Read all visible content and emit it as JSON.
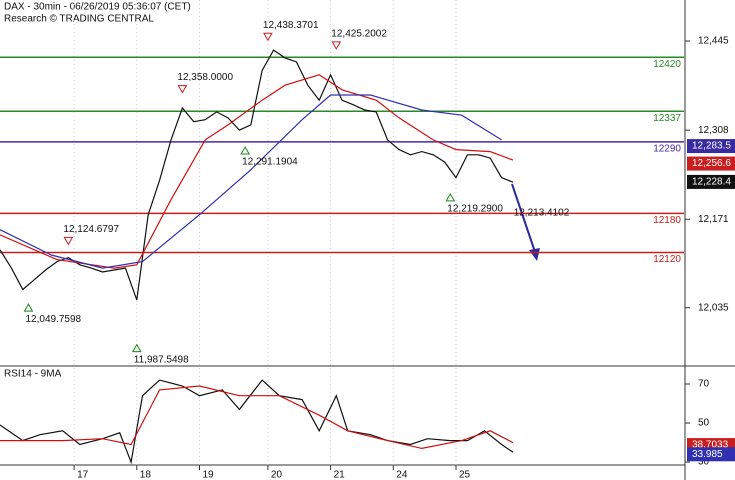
{
  "header": {
    "title": "DAX - 30min - 06/26/2019 05:36:07 (CET)",
    "subtitle": "Research © TRADING CENTRAL"
  },
  "chart_data": [
    {
      "type": "line",
      "xlim": [
        0,
        120
      ],
      "ylim": [
        11947,
        12508
      ],
      "xticks": [
        {
          "value": 13,
          "label": "17"
        },
        {
          "value": 24,
          "label": "18"
        },
        {
          "value": 35,
          "label": "19"
        },
        {
          "value": 47,
          "label": "20"
        },
        {
          "value": 58,
          "label": "21"
        },
        {
          "value": 69,
          "label": "24"
        },
        {
          "value": 80,
          "label": "25"
        }
      ],
      "yticks": [
        {
          "value": 12445,
          "label": "12,445"
        },
        {
          "value": 12308,
          "label": "12,308"
        },
        {
          "value": 12171,
          "label": "12,171"
        },
        {
          "value": 12035,
          "label": "12,035"
        }
      ],
      "grid": true,
      "series": [
        {
          "color": "#111111",
          "x": [
            0,
            2,
            4,
            6,
            8,
            10,
            12,
            14,
            16,
            18,
            20,
            22,
            24,
            26,
            28,
            30,
            32,
            34,
            36,
            38,
            40,
            42,
            44,
            46,
            48,
            50,
            52,
            54,
            56,
            58,
            60,
            62,
            64,
            66,
            68,
            70,
            72,
            74,
            76,
            78,
            80,
            82,
            84,
            86,
            88,
            90
          ],
          "values": [
            12124,
            12096,
            12063,
            12078,
            12093,
            12106,
            12112,
            12101,
            12096,
            12090,
            12093,
            12096,
            12047,
            12178,
            12231,
            12293,
            12342,
            12321,
            12324,
            12336,
            12327,
            12308,
            12316,
            12400,
            12431,
            12419,
            12413,
            12377,
            12354,
            12393,
            12354,
            12347,
            12339,
            12336,
            12293,
            12278,
            12270,
            12275,
            12270,
            12259,
            12235,
            12270,
            12270,
            12265,
            12235,
            12228
          ]
        },
        {
          "color": "#d01010",
          "x": [
            0,
            10,
            20,
            24,
            30,
            36,
            40,
            46,
            50,
            56,
            60,
            66,
            70,
            76,
            80,
            86,
            90
          ],
          "values": [
            12147,
            12109,
            12096,
            12101,
            12201,
            12293,
            12316,
            12354,
            12377,
            12393,
            12370,
            12354,
            12327,
            12293,
            12278,
            12275,
            12262
          ]
        },
        {
          "color": "#3030b0",
          "x": [
            0,
            9,
            18,
            25,
            35,
            44,
            53,
            58,
            65,
            74,
            81,
            88
          ],
          "values": [
            12155,
            12116,
            12096,
            12106,
            12178,
            12247,
            12324,
            12362,
            12362,
            12339,
            12331,
            12293
          ]
        }
      ],
      "levels": [
        {
          "value": 12420,
          "color": "#2a8a2a"
        },
        {
          "value": 12337,
          "color": "#2a8a2a"
        },
        {
          "value": 12290,
          "color": "#4a2aa0"
        },
        {
          "value": 12180,
          "color": "#c81e1e"
        },
        {
          "value": 12120,
          "color": "#c81e1e"
        }
      ],
      "annotations": [
        {
          "kind": "high",
          "x": 47,
          "value": 12438.3701,
          "label": "12,438.3701"
        },
        {
          "kind": "high",
          "x": 59,
          "value": 12425.2002,
          "label": "12,425.2002"
        },
        {
          "kind": "high",
          "x": 32,
          "value": 12358.0,
          "label": "12,358.0000"
        },
        {
          "kind": "high",
          "x": 12,
          "value": 12124.6797,
          "label": "12,124.6797"
        },
        {
          "kind": "low",
          "x": 5,
          "value": 12049.7598,
          "label": "12,049.7598"
        },
        {
          "kind": "low",
          "x": 24,
          "value": 11987.5498,
          "label": "11,987.5498"
        },
        {
          "kind": "low",
          "x": 43,
          "value": 12291.1904,
          "label": "12,291.1904"
        },
        {
          "kind": "low",
          "x": 79,
          "value": 12219.29,
          "label": "12,219.2900"
        },
        {
          "kind": "target",
          "x": 91,
          "value": 12213.4102,
          "label": "12,213.4102"
        }
      ],
      "last_values": [
        {
          "value": 12283.5,
          "label": "12,283.5",
          "color": "#3a2aa0"
        },
        {
          "value": 12256.6,
          "label": "12,256.6",
          "color": "#c81e1e"
        },
        {
          "value": 12228.4,
          "label": "12,228.4",
          "color": "#111111"
        }
      ]
    },
    {
      "type": "line",
      "title": "RSI14 - 9MA",
      "xlim": [
        0,
        120
      ],
      "ylim": [
        28.5,
        78.2
      ],
      "yticks": [
        70,
        50,
        30
      ],
      "series": [
        {
          "color": "#111111",
          "x": [
            0,
            4,
            7,
            11,
            14,
            18,
            21,
            23,
            25,
            28,
            32,
            35,
            39,
            42,
            46,
            49,
            53,
            56,
            59,
            61,
            65,
            68,
            72,
            75,
            79,
            82,
            85,
            88,
            90
          ],
          "values": [
            49,
            41,
            44,
            46,
            39,
            42,
            45,
            30,
            64,
            72,
            69,
            64,
            67,
            57,
            72,
            64,
            62,
            46,
            64,
            46,
            44,
            41,
            39,
            42,
            41,
            41,
            46,
            39,
            35
          ]
        },
        {
          "color": "#d01010",
          "x": [
            0,
            11,
            18,
            23,
            28,
            35,
            42,
            49,
            56,
            61,
            68,
            74,
            81,
            86,
            90
          ],
          "values": [
            41,
            41,
            42,
            39,
            67,
            69,
            64,
            64,
            54,
            46,
            41,
            37,
            41,
            46,
            40
          ]
        }
      ],
      "last_values": [
        {
          "value": 38.7033,
          "label": "38.7033",
          "color": "#c81e1e"
        },
        {
          "value": 33.985,
          "label": "33.985",
          "color": "#3030b0"
        }
      ]
    }
  ]
}
